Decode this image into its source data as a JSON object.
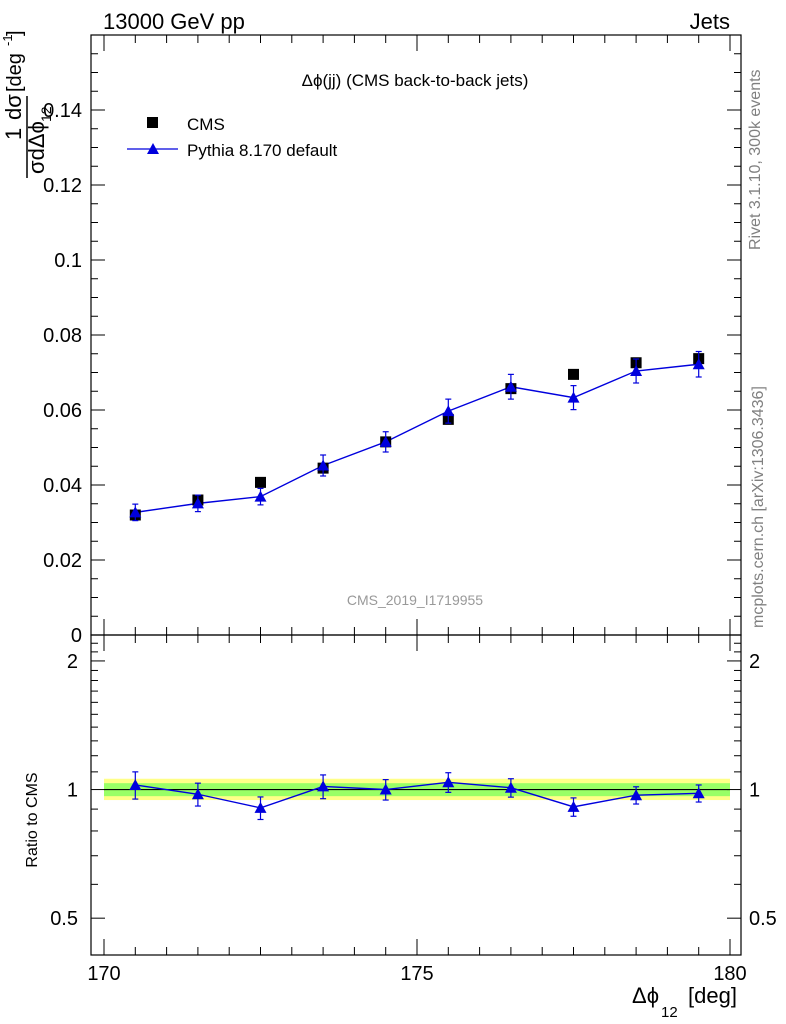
{
  "header": {
    "left": "13000 GeV pp",
    "right": "Jets"
  },
  "side_labels": {
    "rivet": "Rivet 3.1.10,  300k events",
    "mcplots": "mcplots.cern.ch [arXiv:1306.3436]"
  },
  "watermark": "CMS_2019_I1719955",
  "colors": {
    "mc": "#0000dd",
    "data": "#000000",
    "band_inner": "#99ff66",
    "band_outer": "#ffff88"
  },
  "chart_data": [
    {
      "type": "scatter",
      "title": "Δϕ(jj) (CMS back-to-back jets)",
      "ylabel": "1/σ dσ/dΔϕ12 [deg⁻¹]",
      "ylabel_parts": {
        "num": "1",
        "dsig": "dσ",
        "den": "σdΔϕ",
        "den_sub": "12",
        "unit": "[deg",
        "unit_sup": "-1",
        "unit_end": "]"
      },
      "xlim": [
        170,
        180
      ],
      "ylim": [
        0,
        0.16
      ],
      "yticks": [
        0,
        0.02,
        0.04,
        0.06,
        0.08,
        0.1,
        0.12,
        0.14
      ],
      "ytick_labels": [
        "0",
        "0.02",
        "0.04",
        "0.06",
        "0.08",
        "0.1",
        "0.12",
        "0.14"
      ],
      "legend": [
        "CMS",
        "Pythia 8.170 default"
      ],
      "legend_position": "top-left",
      "x": [
        170.5,
        171.5,
        172.5,
        173.5,
        174.5,
        175.5,
        176.5,
        177.5,
        178.5,
        179.5
      ],
      "series": [
        {
          "name": "CMS",
          "marker": "square",
          "values": [
            0.032,
            0.036,
            0.0407,
            0.0445,
            0.0515,
            0.0575,
            0.0657,
            0.0695,
            0.0726,
            0.0737
          ],
          "errors": [
            0.001,
            0.001,
            0.001,
            0.0012,
            0.0013,
            0.0012,
            0.0014,
            0.0012,
            0.0013,
            0.0015
          ]
        },
        {
          "name": "Pythia 8.170 default",
          "marker": "triangle",
          "values": [
            0.0327,
            0.0351,
            0.0369,
            0.0452,
            0.0515,
            0.0597,
            0.0662,
            0.0633,
            0.0704,
            0.0722
          ],
          "errors": [
            0.0022,
            0.0022,
            0.0022,
            0.0028,
            0.0027,
            0.0032,
            0.0033,
            0.0032,
            0.0032,
            0.0034
          ]
        }
      ]
    },
    {
      "type": "line",
      "ylabel": "Ratio to CMS",
      "xlabel": "Δϕ12 [deg]",
      "xlabel_parts": {
        "main": "Δϕ",
        "sub": "12",
        "unit": "[deg]"
      },
      "xlim": [
        170,
        180
      ],
      "ylim": [
        0.41,
        2.3
      ],
      "yscale": "log",
      "xticks": [
        170,
        175,
        180
      ],
      "xtick_labels": [
        "170",
        "175",
        "180"
      ],
      "yticks": [
        0.5,
        1,
        2
      ],
      "ytick_labels": [
        "0.5",
        "1",
        "2"
      ],
      "reference_line": 1,
      "band_inner": [
        0.965,
        1.035
      ],
      "band_outer": [
        0.945,
        1.06
      ],
      "x": [
        170.5,
        171.5,
        172.5,
        173.5,
        174.5,
        175.5,
        176.5,
        177.5,
        178.5,
        179.5
      ],
      "series": [
        {
          "name": "Pythia 8.170 default",
          "values": [
            1.025,
            0.975,
            0.906,
            1.017,
            1.0,
            1.04,
            1.01,
            0.911,
            0.97,
            0.98
          ],
          "errors": [
            0.075,
            0.06,
            0.055,
            0.065,
            0.055,
            0.055,
            0.05,
            0.045,
            0.045,
            0.045
          ]
        }
      ]
    }
  ]
}
